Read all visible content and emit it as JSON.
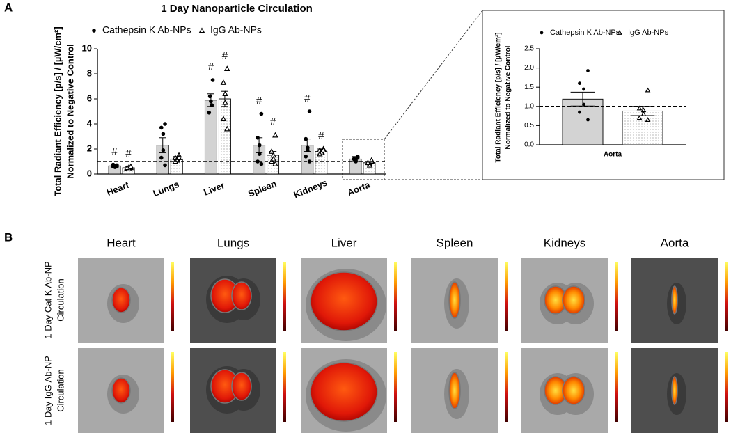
{
  "panel_labels": [
    "A",
    "B"
  ],
  "chart_data": [
    {
      "type": "bar",
      "title": "1 Day Nanoparticle Circulation",
      "ylabel": [
        "Total Radiant Efficiency [p/s] / [µW/cm²]",
        "Normalized to Negative Control"
      ],
      "categories": [
        "Heart",
        "Lungs",
        "Liver",
        "Spleen",
        "Kidneys",
        "Aorta"
      ],
      "series": [
        {
          "name": "Cathepsin K Ab-NPs",
          "color": "#d3d3d3",
          "marker": "circle",
          "values": [
            0.65,
            2.3,
            5.9,
            2.3,
            2.3,
            1.2
          ],
          "errors": [
            0.1,
            0.6,
            0.5,
            0.6,
            0.5,
            0.2
          ],
          "points": [
            [
              0.7,
              0.6,
              0.65,
              0.55,
              0.75,
              0.6
            ],
            [
              4.0,
              3.7,
              3.2,
              1.9,
              1.3,
              0.7
            ],
            [
              7.5,
              6.2,
              5.8,
              5.5,
              4.9
            ],
            [
              4.8,
              2.9,
              2.3,
              1.6,
              1.0,
              0.8
            ],
            [
              5.0,
              2.8,
              2.1,
              1.9,
              1.4,
              1.0
            ],
            [
              1.3,
              1.2,
              1.1,
              1.0,
              1.2,
              1.4
            ]
          ],
          "sig_labels": [
            "#",
            null,
            "#",
            "#",
            "#",
            null
          ]
        },
        {
          "name": "IgG Ab-NPs",
          "color": "#ffffff",
          "pattern": "dots",
          "marker": "triangle",
          "values": [
            0.5,
            1.2,
            6.0,
            1.5,
            1.8,
            0.9
          ],
          "errors": [
            0.1,
            0.2,
            0.6,
            0.3,
            0.2,
            0.1
          ],
          "points": [
            [
              0.5,
              0.45,
              0.55,
              0.4,
              0.5,
              0.6
            ],
            [
              1.5,
              1.3,
              1.2,
              1.1,
              1.0,
              1.3
            ],
            [
              8.4,
              7.3,
              6.4,
              5.7,
              4.4,
              3.6
            ],
            [
              3.1,
              1.8,
              1.5,
              1.2,
              1.0,
              0.8
            ],
            [
              2.0,
              1.9,
              1.8,
              1.7,
              1.6,
              1.9
            ],
            [
              1.0,
              0.9,
              0.8,
              0.7,
              0.9,
              1.1
            ]
          ],
          "sig_labels": [
            "#",
            null,
            "#",
            "#",
            "#",
            null
          ]
        }
      ],
      "ylim": [
        0,
        10
      ],
      "yticks": [
        0,
        2,
        4,
        6,
        8,
        10
      ],
      "ref_line": 1
    },
    {
      "type": "bar",
      "ylabel": [
        "Total Radiant Efficiency [p/s] / [µW/cm²]",
        "Normalized to Negative Control"
      ],
      "categories": [
        "Aorta"
      ],
      "series": [
        {
          "name": "Cathepsin K Ab-NPs",
          "color": "#d3d3d3",
          "marker": "circle",
          "values": [
            1.19
          ],
          "errors": [
            0.18
          ],
          "points": [
            [
              1.93,
              1.6,
              1.45,
              1.05,
              0.85,
              0.65
            ]
          ]
        },
        {
          "name": "IgG Ab-NPs",
          "color": "#ffffff",
          "pattern": "dots",
          "marker": "triangle",
          "values": [
            0.88
          ],
          "errors": [
            0.12
          ],
          "points": [
            [
              1.42,
              0.95,
              0.9,
              0.8,
              0.7,
              0.65
            ]
          ]
        }
      ],
      "ylim": [
        0,
        2.5
      ],
      "yticks": [
        {
          "value": 0,
          "label": "0.0"
        },
        {
          "value": 0.5,
          "label": "0.5"
        },
        {
          "value": 1,
          "label": "1.0"
        },
        {
          "value": 1.5,
          "label": "1.5"
        },
        {
          "value": 2,
          "label": "2.0"
        },
        {
          "value": 2.5,
          "label": "2.5"
        }
      ],
      "ref_line": 1
    }
  ],
  "imaging": {
    "columns": [
      "Heart",
      "Lungs",
      "Liver",
      "Spleen",
      "Kidneys",
      "Aorta"
    ],
    "rows": [
      [
        "1 Day Cat K Ab-NP",
        "Circulation"
      ],
      [
        "1 Day IgG Ab-NP",
        "Circulation"
      ]
    ]
  }
}
